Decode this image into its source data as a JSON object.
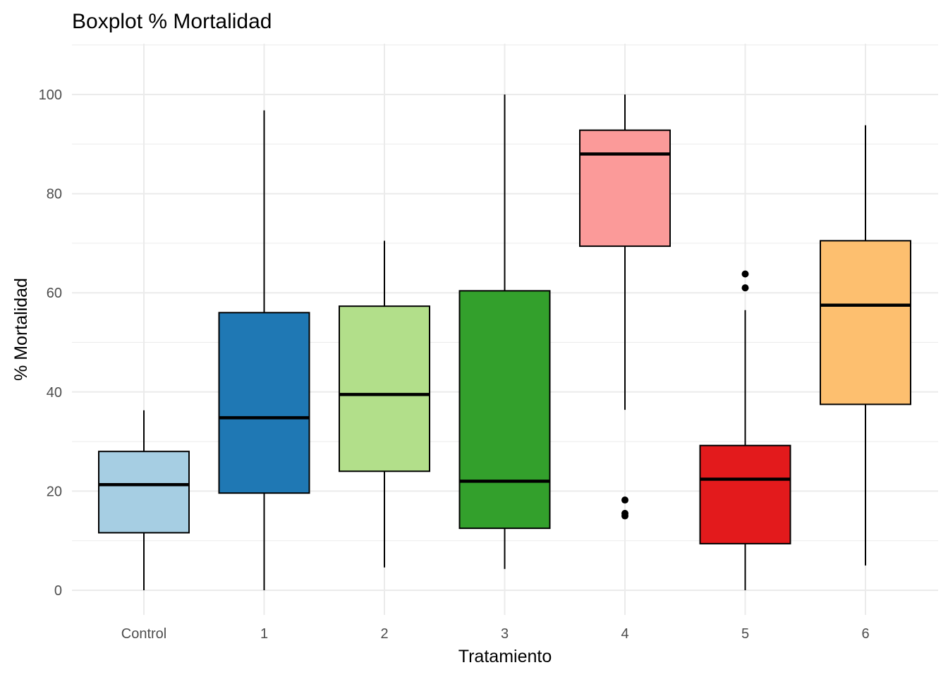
{
  "chart_data": {
    "type": "boxplot",
    "title": "Boxplot % Mortalidad",
    "xlabel": "Tratamiento",
    "ylabel": "% Mortalidad",
    "ylim": [
      -5,
      110
    ],
    "yticks": [
      0,
      20,
      40,
      60,
      80,
      100
    ],
    "grid": true,
    "legend": "none",
    "categories": [
      "Control",
      "1",
      "2",
      "3",
      "4",
      "5",
      "6"
    ],
    "boxes": [
      {
        "category": "Control",
        "whisker_low": 0,
        "q1": 11.6,
        "median": 21.3,
        "q3": 28.0,
        "whisker_high": 36.3,
        "outliers": [],
        "color": "#a6cee3"
      },
      {
        "category": "1",
        "whisker_low": 0,
        "q1": 19.6,
        "median": 34.8,
        "q3": 56.0,
        "whisker_high": 96.8,
        "outliers": [],
        "color": "#1f78b4"
      },
      {
        "category": "2",
        "whisker_low": 4.6,
        "q1": 24.0,
        "median": 39.5,
        "q3": 57.3,
        "whisker_high": 70.5,
        "outliers": [],
        "color": "#b2df8a"
      },
      {
        "category": "3",
        "whisker_low": 4.3,
        "q1": 12.5,
        "median": 22.0,
        "q3": 60.4,
        "whisker_high": 100,
        "outliers": [],
        "color": "#33a02c"
      },
      {
        "category": "4",
        "whisker_low": 36.4,
        "q1": 69.4,
        "median": 88.0,
        "q3": 92.8,
        "whisker_high": 100,
        "outliers": [
          18.2,
          15.5,
          15.0
        ],
        "color": "#fb9a99"
      },
      {
        "category": "5",
        "whisker_low": 0,
        "q1": 9.4,
        "median": 22.4,
        "q3": 29.2,
        "whisker_high": 56.5,
        "outliers": [
          61.0,
          63.8
        ],
        "color": "#e31a1c"
      },
      {
        "category": "6",
        "whisker_low": 5.0,
        "q1": 37.5,
        "median": 57.5,
        "q3": 70.5,
        "whisker_high": 93.8,
        "outliers": [],
        "color": "#fdbf6f"
      }
    ]
  }
}
